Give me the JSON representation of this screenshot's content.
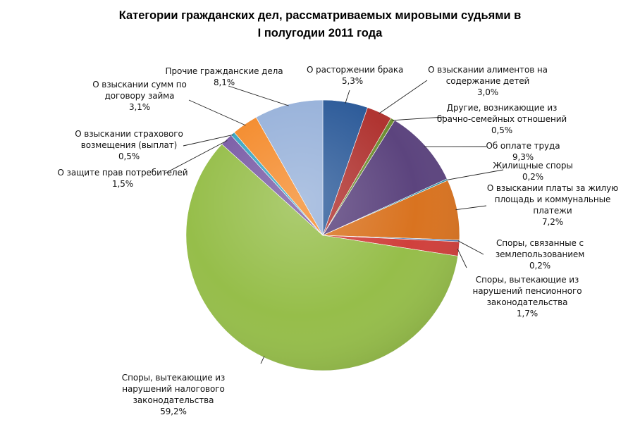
{
  "chart_data": {
    "type": "pie",
    "title": [
      "Категории гражданских дел, рассматриваемых мировыми судьями в",
      "I полугодии 2011 года"
    ],
    "slices": [
      {
        "lines": [
          "О расторжении брака"
        ],
        "percent": "5,3%",
        "value": 5.3,
        "color": "#2E5C9A"
      },
      {
        "lines": [
          "О взыскании алиментов на",
          "содержание детей"
        ],
        "percent": "3,0%",
        "value": 3.0,
        "color": "#B03431"
      },
      {
        "lines": [
          "Другие, возникающие из",
          "брачно-семейных отношений"
        ],
        "percent": "0,5%",
        "value": 0.5,
        "color": "#6E8E32"
      },
      {
        "lines": [
          "Об оплате труда"
        ],
        "percent": "9,3%",
        "value": 9.3,
        "color": "#5C447E"
      },
      {
        "lines": [
          "Жилищные споры"
        ],
        "percent": "0,2%",
        "value": 0.2,
        "color": "#2B8BA3"
      },
      {
        "lines": [
          "О взыскании платы за жилую",
          "площадь и коммунальные",
          "платежи"
        ],
        "percent": "7,2%",
        "value": 7.2,
        "color": "#D97320"
      },
      {
        "lines": [
          "Споры, связанные с",
          "землепользованием"
        ],
        "percent": "0,2%",
        "value": 0.2,
        "color": "#4A74AE"
      },
      {
        "lines": [
          "Споры, вытекающие из",
          "нарушений пенсионного",
          "законодательства"
        ],
        "percent": "1,7%",
        "value": 1.7,
        "color": "#D0403C"
      },
      {
        "lines": [
          "Споры, вытекающие из",
          "нарушений налогового",
          "законодательства"
        ],
        "percent": "59,2%",
        "value": 59.2,
        "color": "#96BE4A"
      },
      {
        "lines": [
          "О защите прав потребителей"
        ],
        "percent": "1,5%",
        "value": 1.5,
        "color": "#7A5CA6"
      },
      {
        "lines": [
          "О взыскании страхового",
          "возмещения (выплат)"
        ],
        "percent": "0,5%",
        "value": 0.5,
        "color": "#3AA6C2"
      },
      {
        "lines": [
          "О взыскании сумм по",
          "договору займа"
        ],
        "percent": "3,1%",
        "value": 3.1,
        "color": "#F48B2C"
      },
      {
        "lines": [
          "Прочие гражданские дела"
        ],
        "percent": "8,1%",
        "value": 8.1,
        "color": "#98B2DA"
      }
    ]
  }
}
